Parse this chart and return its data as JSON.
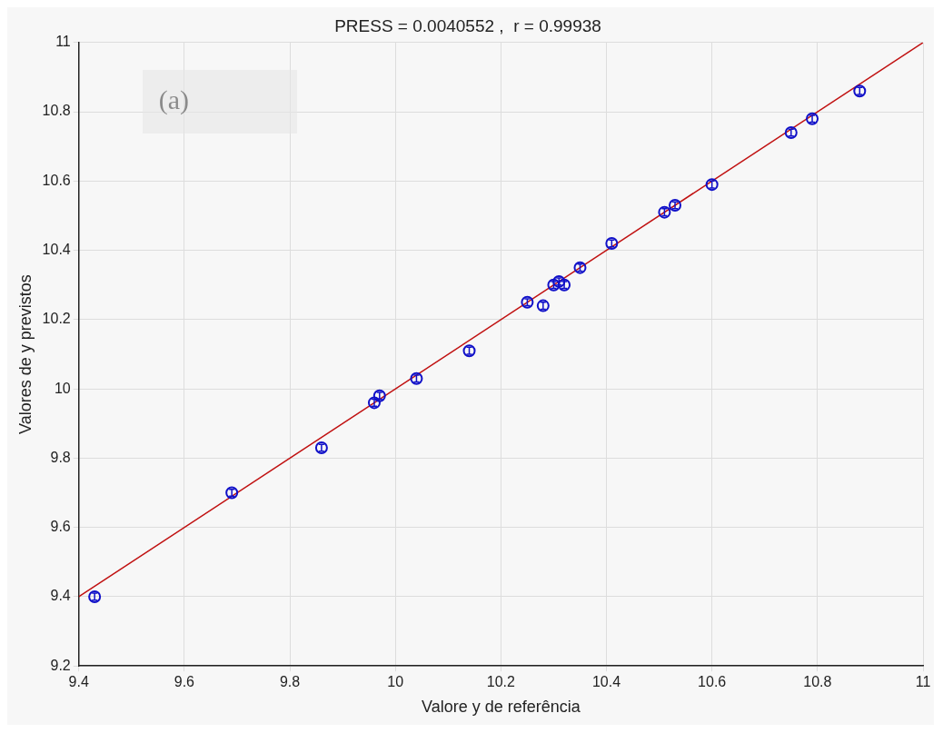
{
  "chart_data": {
    "type": "scatter",
    "title": "PRESS = 0.0040552 ,  r = 0.99938",
    "xlabel": "Valore y de referência",
    "ylabel": "Valores de y previstos",
    "annotations": [
      "(a)"
    ],
    "xlim": [
      9.4,
      11
    ],
    "xticks": [
      9.4,
      9.6,
      9.8,
      10,
      10.2,
      10.4,
      10.6,
      10.8,
      11
    ],
    "ylim": [
      9.2,
      11
    ],
    "yticks": [
      9.2,
      9.4,
      9.6,
      9.8,
      10,
      10.2,
      10.4,
      10.6,
      10.8,
      11
    ],
    "grid": true,
    "legend": false,
    "series": [
      {
        "color": "#1010c8",
        "marker": "circle",
        "x": [
          9.43,
          9.69,
          9.86,
          9.96,
          9.97,
          10.04,
          10.14,
          10.25,
          10.28,
          10.3,
          10.31,
          10.32,
          10.35,
          10.41,
          10.51,
          10.53,
          10.6,
          10.75,
          10.79,
          10.88
        ],
        "values": [
          9.4,
          9.7,
          9.83,
          9.96,
          9.98,
          10.03,
          10.11,
          10.25,
          10.24,
          10.3,
          10.31,
          10.3,
          10.35,
          10.42,
          10.51,
          10.53,
          10.59,
          10.74,
          10.78,
          10.86
        ],
        "errors": [
          0.01,
          0.01,
          0.01,
          0.01,
          0.01,
          0.01,
          0.01,
          0.01,
          0.01,
          0.01,
          0.01,
          0.01,
          0.01,
          0.01,
          0.01,
          0.01,
          0.01,
          0.01,
          0.01,
          0.01
        ]
      },
      {
        "type": "line",
        "color": "#c01010",
        "marker": "none",
        "line_style": "solid",
        "x": [
          9.4,
          11
        ],
        "values": [
          9.4,
          11
        ]
      }
    ]
  }
}
